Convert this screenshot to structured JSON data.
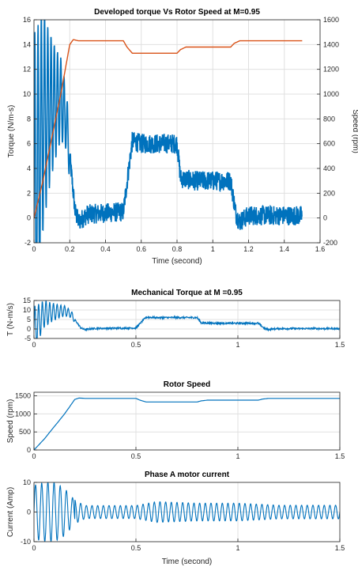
{
  "chart_data": [
    {
      "type": "line",
      "title": "Developed torque Vs Rotor Speed at M=0.95",
      "xlabel": "Time (second)",
      "ylabel": "Torque (N/m-s)",
      "ylabel_right": "Speed (rpm)",
      "xlim": [
        0,
        1.6
      ],
      "ylim": [
        -2,
        16
      ],
      "ylim_right": [
        -200,
        1600
      ],
      "xticks": [
        "0",
        "0.2",
        "0.4",
        "0.6",
        "0.8",
        "1",
        "1.2",
        "1.4",
        "1.6"
      ],
      "yticks": [
        "-2",
        "0",
        "2",
        "4",
        "6",
        "8",
        "10",
        "12",
        "14",
        "16"
      ],
      "yticks_right": [
        "-200",
        "0",
        "200",
        "400",
        "600",
        "800",
        "1000",
        "1200",
        "1400",
        "1600"
      ],
      "grid": true,
      "colors": {
        "torque": "#0072BD",
        "speed": "#D95319"
      },
      "series": [
        {
          "axis": "left",
          "x": [
            0,
            0.05,
            0.1,
            0.15,
            0.18,
            0.2,
            0.23,
            0.25,
            0.3,
            0.4,
            0.5,
            0.53,
            0.55,
            0.6,
            0.7,
            0.8,
            0.82,
            0.9,
            1.0,
            1.1,
            1.13,
            1.15,
            1.2,
            1.3,
            1.4,
            1.5
          ],
          "y": [
            0,
            8,
            9,
            9.6,
            8,
            5,
            0.5,
            -0.3,
            0.3,
            0.4,
            0.5,
            4,
            6.2,
            6,
            6,
            6,
            3.2,
            3,
            3,
            3,
            0.3,
            -0.3,
            0.2,
            0.2,
            0.2,
            0.2
          ]
        },
        {
          "axis": "right",
          "x": [
            0,
            0.05,
            0.1,
            0.15,
            0.2,
            0.22,
            0.25,
            0.3,
            0.4,
            0.5,
            0.52,
            0.55,
            0.6,
            0.7,
            0.8,
            0.82,
            0.85,
            0.9,
            1.0,
            1.1,
            1.12,
            1.15,
            1.2,
            1.3,
            1.4,
            1.5
          ],
          "y": [
            0,
            300,
            650,
            1000,
            1400,
            1440,
            1430,
            1430,
            1430,
            1430,
            1380,
            1330,
            1330,
            1330,
            1330,
            1360,
            1380,
            1380,
            1380,
            1380,
            1410,
            1430,
            1430,
            1430,
            1430,
            1430
          ]
        }
      ]
    },
    {
      "type": "line",
      "title": "Mechanical Torque at M =0.95",
      "xlabel": "",
      "ylabel": "T (N-m/s)",
      "xlim": [
        0,
        1.5
      ],
      "ylim": [
        -5,
        15
      ],
      "xticks": [
        "0",
        "0.5",
        "1",
        "1.5"
      ],
      "yticks": [
        "-5",
        "0",
        "5",
        "10",
        "15"
      ],
      "grid": true,
      "color": "#0072BD",
      "series": [
        {
          "x": [
            0,
            0.05,
            0.1,
            0.15,
            0.18,
            0.2,
            0.23,
            0.25,
            0.3,
            0.4,
            0.5,
            0.53,
            0.55,
            0.6,
            0.7,
            0.8,
            0.82,
            0.9,
            1.0,
            1.1,
            1.13,
            1.15,
            1.2,
            1.3,
            1.4,
            1.5
          ],
          "y": [
            0,
            8,
            9,
            9.6,
            8,
            5,
            0.5,
            -0.3,
            0.3,
            0.4,
            0.5,
            4,
            6.2,
            6,
            6,
            6,
            3.2,
            3,
            3,
            3,
            0.3,
            -0.3,
            0.2,
            0.2,
            0.2,
            0.2
          ]
        }
      ]
    },
    {
      "type": "line",
      "title": "Rotor Speed",
      "xlabel": "",
      "ylabel": "Speed (rpm)",
      "xlim": [
        0,
        1.5
      ],
      "ylim": [
        0,
        1600
      ],
      "xticks": [
        "0",
        "0.5",
        "1",
        "1.5"
      ],
      "yticks": [
        "0",
        "500",
        "1000",
        "1500"
      ],
      "grid": true,
      "color": "#0072BD",
      "series": [
        {
          "x": [
            0,
            0.05,
            0.1,
            0.15,
            0.2,
            0.22,
            0.25,
            0.3,
            0.4,
            0.5,
            0.52,
            0.55,
            0.6,
            0.7,
            0.8,
            0.82,
            0.85,
            0.9,
            1.0,
            1.1,
            1.12,
            1.15,
            1.2,
            1.3,
            1.4,
            1.5
          ],
          "y": [
            0,
            300,
            650,
            1000,
            1400,
            1440,
            1430,
            1430,
            1430,
            1430,
            1380,
            1330,
            1330,
            1330,
            1330,
            1360,
            1380,
            1380,
            1380,
            1380,
            1410,
            1430,
            1430,
            1430,
            1430,
            1430
          ]
        }
      ]
    },
    {
      "type": "line",
      "title": "Phase A motor current",
      "xlabel": "Time (second)",
      "ylabel": "Current (Amp)",
      "xlim": [
        0,
        1.5
      ],
      "ylim": [
        -10,
        10
      ],
      "xticks": [
        "0",
        "0.5",
        "1",
        "1.5"
      ],
      "yticks": [
        "-10",
        "0",
        "10"
      ],
      "grid": true,
      "color": "#0072BD",
      "series": [
        {
          "description_of_signal": "",
          "envelope_t": [
            0,
            0.05,
            0.1,
            0.15,
            0.2,
            0.25,
            0.5,
            0.6,
            0.8,
            1.0,
            1.2,
            1.5
          ],
          "envelope_amp": [
            9,
            10,
            10,
            8,
            4,
            2.2,
            2.2,
            3.5,
            3,
            3,
            2.3,
            2.3
          ]
        }
      ]
    }
  ]
}
